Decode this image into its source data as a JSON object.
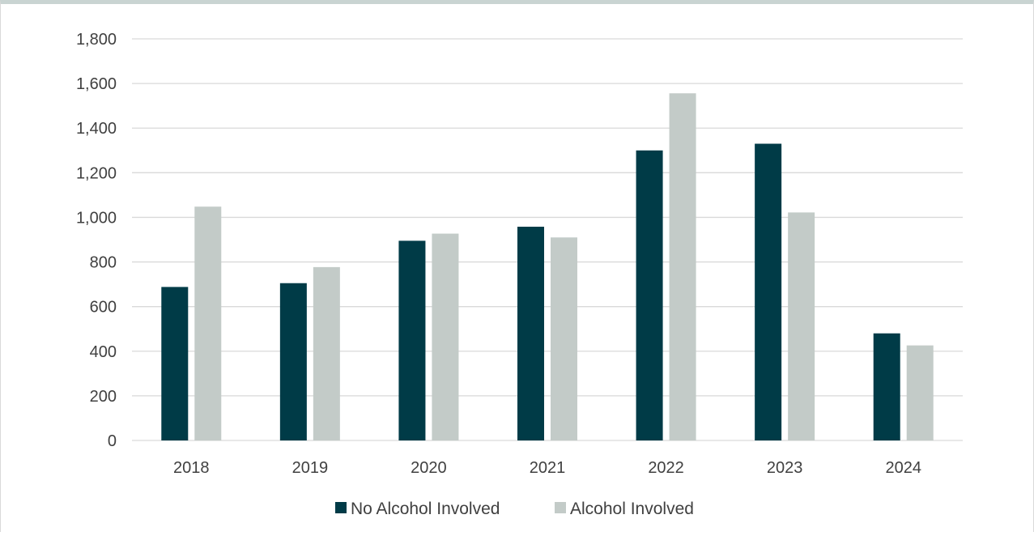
{
  "chart_data": {
    "type": "bar",
    "categories": [
      "2018",
      "2019",
      "2020",
      "2021",
      "2022",
      "2023",
      "2024"
    ],
    "series": [
      {
        "name": "No Alcohol Involved",
        "color": "#003b47",
        "values": [
          688,
          705,
          895,
          958,
          1300,
          1330,
          480
        ]
      },
      {
        "name": "Alcohol Involved",
        "color": "#c3cbc8",
        "values": [
          1048,
          777,
          927,
          910,
          1556,
          1022,
          426
        ]
      }
    ],
    "title": "",
    "xlabel": "",
    "ylabel": "",
    "ylim": [
      0,
      1800
    ],
    "yticks": [
      0,
      200,
      400,
      600,
      800,
      1000,
      1200,
      1400,
      1600,
      1800
    ],
    "ytick_labels": [
      "0",
      "200",
      "400",
      "600",
      "800",
      "1,000",
      "1,200",
      "1,400",
      "1,600",
      "1,800"
    ],
    "grid": true,
    "legend_position": "bottom-center",
    "colors": {
      "gridline": "#d9d9d9",
      "axis_text": "#404040"
    }
  }
}
